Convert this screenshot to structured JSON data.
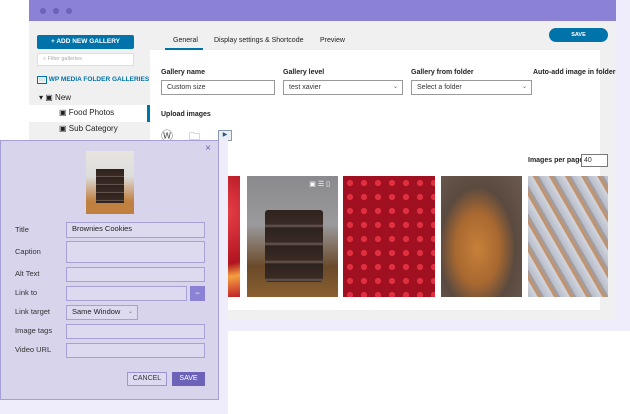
{
  "sidebar": {
    "add_gallery": "+ ADD NEW GALLERY",
    "filter_placeholder": "Filter galleries",
    "root": "WP MEDIA FOLDER GALLERIES",
    "items": [
      {
        "label": "New"
      },
      {
        "label": "Food Photos"
      },
      {
        "label": "Sub Category"
      }
    ]
  },
  "tabs": [
    {
      "label": "General",
      "active": true
    },
    {
      "label": "Display settings & Shortcode"
    },
    {
      "label": "Preview"
    }
  ],
  "save_label": "SAVE",
  "form": {
    "gallery_name_label": "Gallery name",
    "gallery_name": "Custom size",
    "gallery_level_label": "Gallery level",
    "gallery_level": "test xavier",
    "gallery_folder_label": "Gallery from folder",
    "gallery_folder": "Select a folder",
    "auto_add_label": "Auto-add image in folder",
    "upload_label": "Upload images",
    "per_page_label": "Images per page",
    "per_page": "40"
  },
  "modal": {
    "title_label": "Title",
    "title_value": "Brownies Cookies",
    "caption_label": "Caption",
    "alt_label": "Alt Text",
    "link_label": "Link to",
    "target_label": "Link target",
    "target_value": "Same Window",
    "tags_label": "Image tags",
    "video_label": "Video URL",
    "cancel": "CANCEL",
    "save": "SAVE"
  },
  "colors": {
    "accent": "#0073aa",
    "titlebar": "#8b82d6",
    "modal": "#d7d4ec",
    "modal_button": "#6c63b8"
  }
}
